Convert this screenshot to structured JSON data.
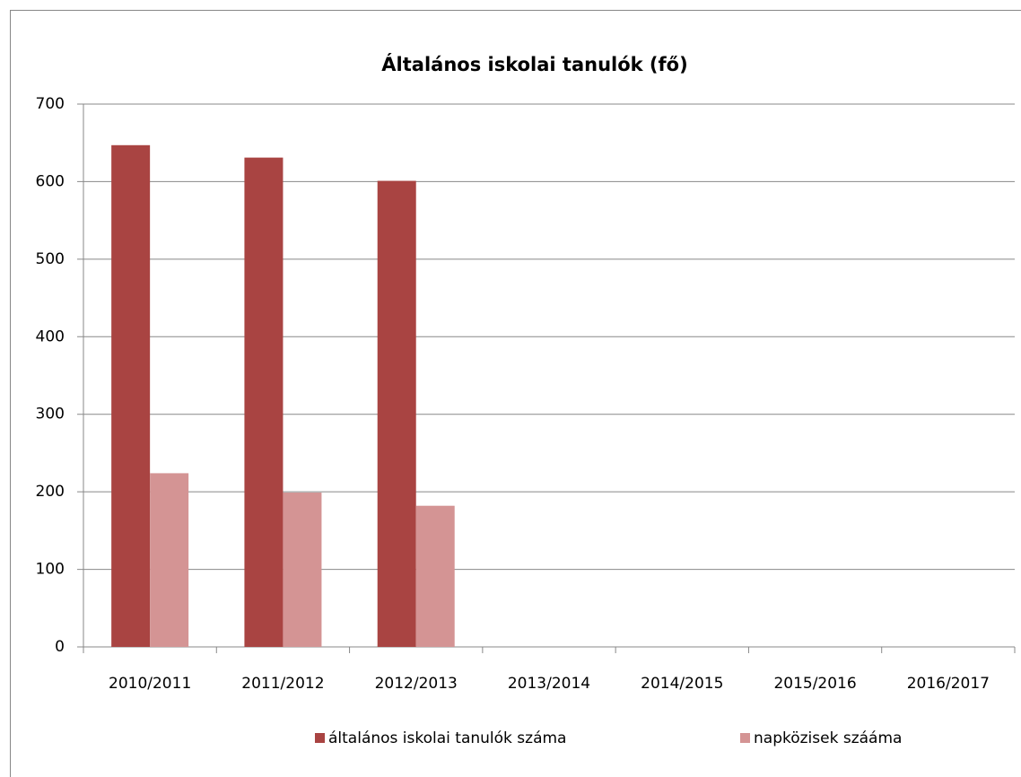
{
  "chart_data": {
    "type": "bar",
    "title": "Általános iskolai tanulók (fő)",
    "categories": [
      "2010/2011",
      "2011/2012",
      "2012/2013",
      "2013/2014",
      "2014/2015",
      "2015/2016",
      "2016/2017"
    ],
    "series": [
      {
        "name": "általános iskolai tanulók száma",
        "color": "#a94442",
        "values": [
          647,
          631,
          601,
          null,
          null,
          null,
          null
        ]
      },
      {
        "name": "napközisek szááma",
        "color": "#d49494",
        "values": [
          224,
          199,
          182,
          null,
          null,
          null,
          null
        ]
      }
    ],
    "ylim": [
      0,
      700
    ],
    "yticks": [
      0,
      100,
      200,
      300,
      400,
      500,
      600,
      700
    ],
    "grid": true,
    "legend": "bottom"
  }
}
